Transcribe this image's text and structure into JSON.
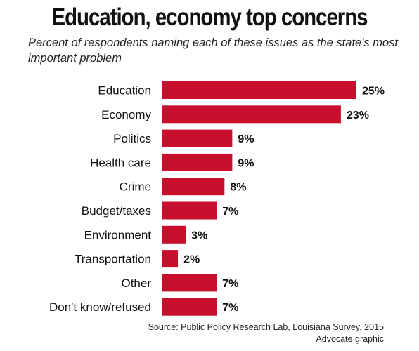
{
  "colors": {
    "bar": "#c8102e",
    "text": "#111111"
  },
  "chart_data": {
    "type": "bar",
    "orientation": "horizontal",
    "title": "Education, economy top concerns",
    "subtitle": "Percent of respondents naming each of these issues as the state's most important problem",
    "categories": [
      "Education",
      "Economy",
      "Politics",
      "Health care",
      "Crime",
      "Budget/taxes",
      "Environment",
      "Transportation",
      "Other",
      "Don't know/refused"
    ],
    "values": [
      25,
      23,
      9,
      9,
      8,
      7,
      3,
      2,
      7,
      7
    ],
    "value_labels": [
      "25%",
      "23%",
      "9%",
      "9%",
      "8%",
      "7%",
      "3%",
      "2%",
      "7%",
      "7%"
    ],
    "xlim": [
      0,
      25
    ],
    "grid": false,
    "legend": "none"
  },
  "footer": {
    "source": "Source: Public Policy Research Lab, Louisiana Survey, 2015",
    "credit": "Advocate graphic"
  }
}
